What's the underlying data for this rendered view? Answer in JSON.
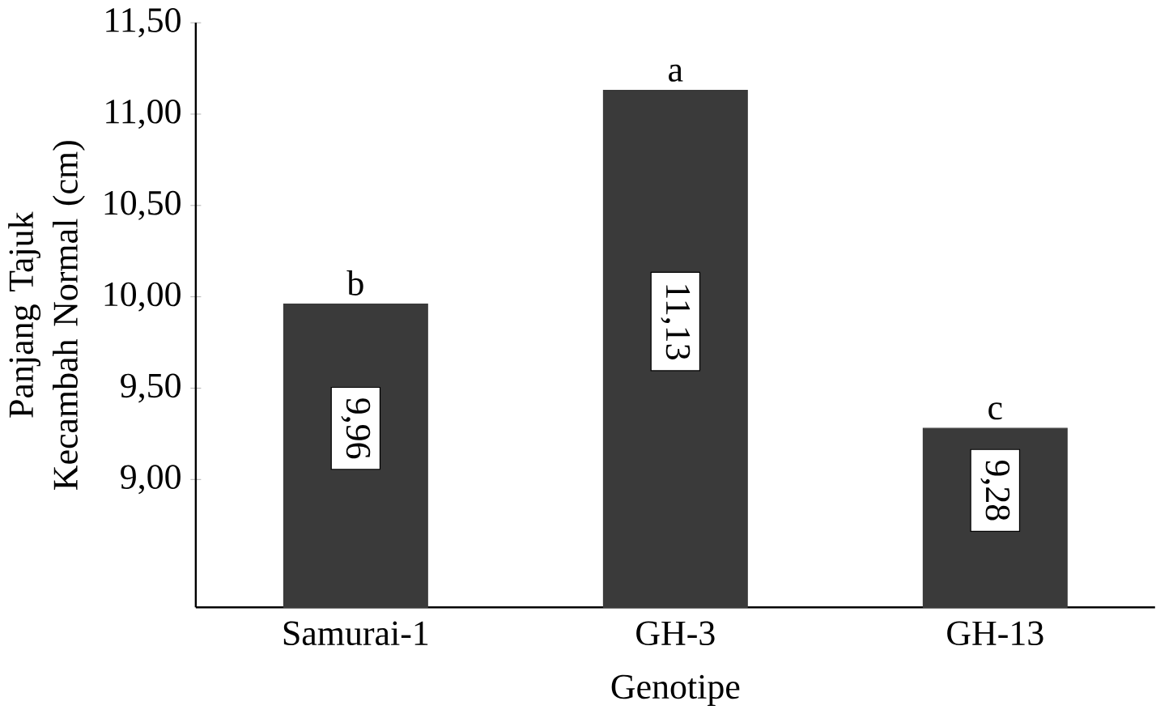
{
  "chart_data": {
    "type": "bar",
    "xlabel": "Genotipe",
    "ylabel": "Panjang Tajuk Kecambah Normal (cm)",
    "categories": [
      "Samurai-1",
      "GH-3",
      "GH-13"
    ],
    "values": [
      9.96,
      11.13,
      9.28
    ],
    "value_labels": [
      "9,96",
      "11,13",
      "9,28"
    ],
    "color": "#3a3a3a",
    "ylim": [
      8.3,
      11.5
    ],
    "yticks": [
      {
        "value": 9.0,
        "label": "9,00"
      },
      {
        "value": 9.5,
        "label": "9,50"
      },
      {
        "value": 10.0,
        "label": "10,00"
      },
      {
        "value": 10.5,
        "label": "10,50"
      },
      {
        "value": 11.0,
        "label": "11,00"
      },
      {
        "value": 11.5,
        "label": "11,50"
      }
    ],
    "annotations": [
      {
        "text": "b",
        "x": "Samurai-1",
        "y": 9.96
      },
      {
        "text": "a",
        "x": "GH-3",
        "y": 11.13
      },
      {
        "text": "c",
        "x": "GH-13",
        "y": 9.28
      }
    ],
    "grid": false
  }
}
